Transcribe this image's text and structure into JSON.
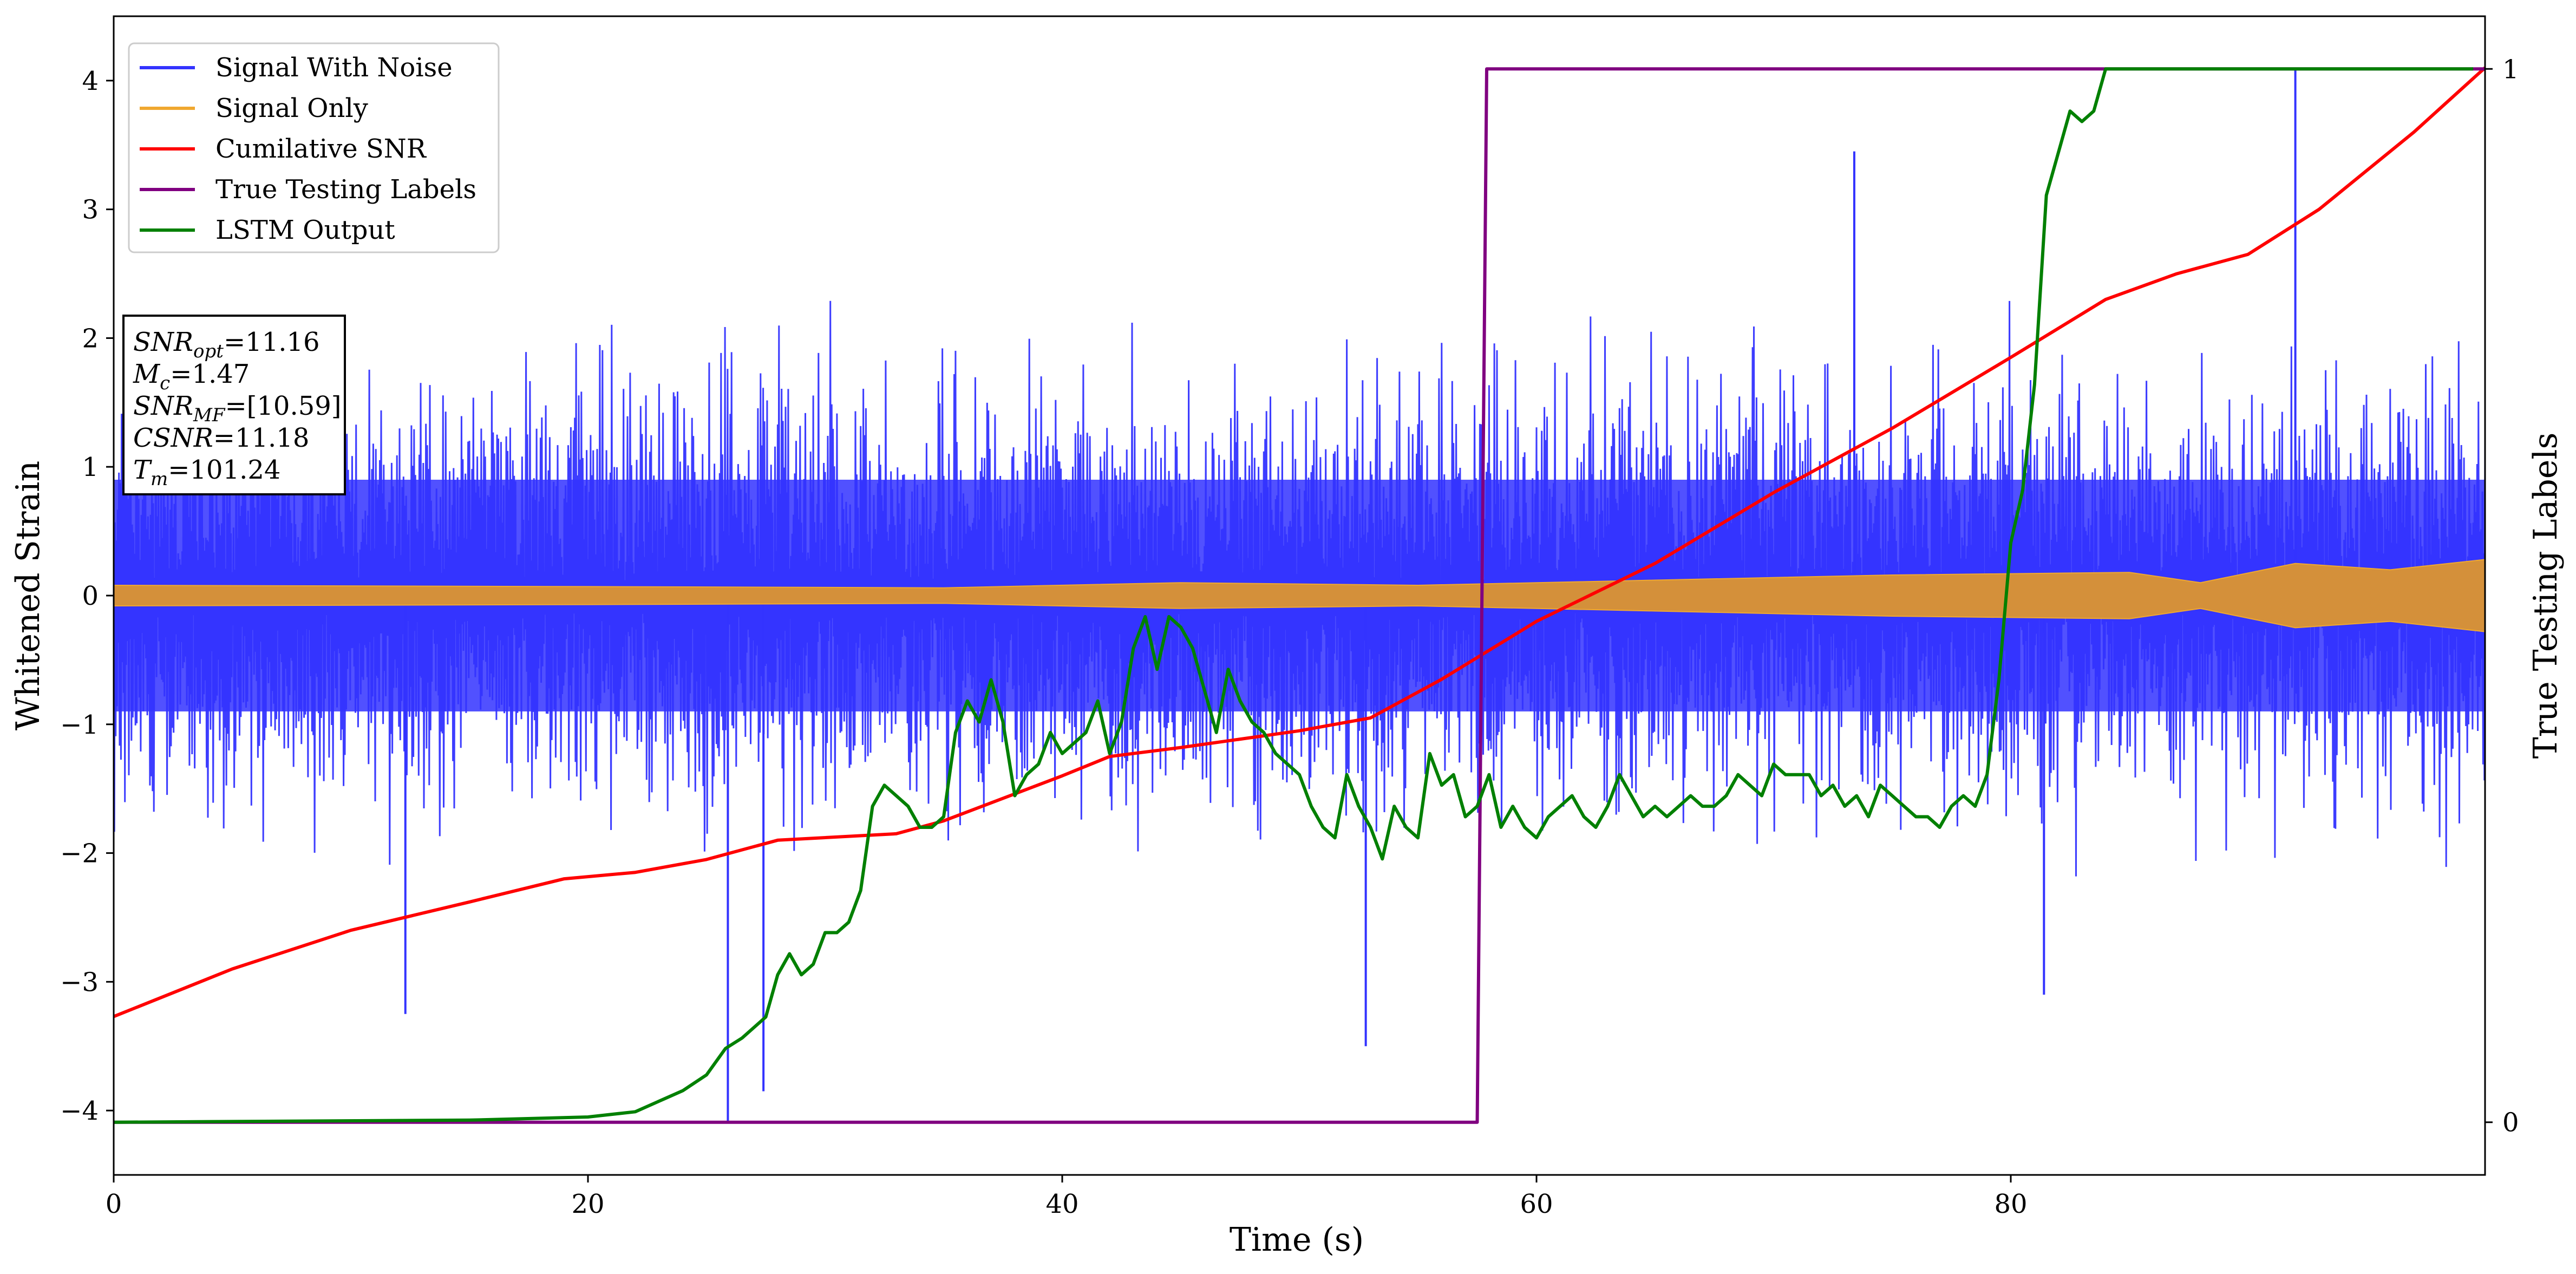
{
  "chart_data": {
    "type": "line",
    "title": "",
    "xlabel": "Time (s)",
    "ylabel": "Whitened Strain",
    "y2label": "True Testing Labels",
    "xlim": [
      0,
      100
    ],
    "ylim": [
      -4.5,
      4.5
    ],
    "y2lim": [
      -0.05,
      1.05
    ],
    "x_ticks": [
      0,
      20,
      40,
      60,
      80
    ],
    "x_tick_labels": [
      "0",
      "20",
      "40",
      "60",
      "80"
    ],
    "y_ticks": [
      -4,
      -3,
      -2,
      -1,
      0,
      1,
      2,
      3,
      4
    ],
    "y_tick_labels": [
      "−4",
      "−3",
      "−2",
      "−1",
      "0",
      "1",
      "2",
      "3",
      "4"
    ],
    "y2_ticks": [
      0,
      1
    ],
    "y2_tick_labels": [
      "0",
      "1"
    ],
    "grid": false,
    "legend_position": "top-left",
    "annotation": {
      "lines": [
        {
          "base": "SNR",
          "sub": "opt",
          "value": "=11.16"
        },
        {
          "base": "M",
          "sub": "c",
          "value": "=1.47"
        },
        {
          "base": "SNR",
          "sub": "MF",
          "value": "=[10.59]"
        },
        {
          "base": "CSNR",
          "sub": "",
          "value": "=11.18"
        },
        {
          "base": "T",
          "sub": "m",
          "value": "=101.24"
        }
      ]
    },
    "series": [
      {
        "name": "Signal With Noise",
        "color": "#3333ff",
        "axis": "left",
        "description_noise": {
          "positive_upper_level": [
            0.9,
            2.3
          ],
          "negative_lower_level": [
            -0.9,
            -2.2
          ]
        },
        "spikes": [
          {
            "x": 25.9,
            "y": -4.1
          },
          {
            "x": 27.4,
            "y": -3.85
          },
          {
            "x": 52.8,
            "y": -3.5
          },
          {
            "x": 92.0,
            "y": 4.1
          },
          {
            "x": 73.4,
            "y": 3.45
          },
          {
            "x": 81.4,
            "y": -3.1
          },
          {
            "x": 12.3,
            "y": -3.25
          }
        ]
      },
      {
        "name": "Signal Only",
        "color": "#f0a830",
        "axis": "left",
        "envelope": [
          [
            0,
            0.08
          ],
          [
            20,
            0.07
          ],
          [
            35,
            0.06
          ],
          [
            45,
            0.1
          ],
          [
            55,
            0.08
          ],
          [
            65,
            0.12
          ],
          [
            75,
            0.16
          ],
          [
            85,
            0.18
          ],
          [
            88,
            0.1
          ],
          [
            92,
            0.25
          ],
          [
            96,
            0.2
          ],
          [
            100,
            0.28
          ]
        ]
      },
      {
        "name": "Cumilative SNR",
        "color": "#ff0000",
        "axis": "left",
        "x": [
          0,
          5,
          10,
          15,
          19,
          22,
          25,
          28,
          33,
          35,
          40,
          42,
          45,
          50,
          53,
          56,
          60,
          65,
          70,
          75,
          80,
          84,
          87,
          90,
          93,
          97,
          100
        ],
        "y": [
          -3.27,
          -2.9,
          -2.6,
          -2.38,
          -2.2,
          -2.15,
          -2.05,
          -1.9,
          -1.85,
          -1.75,
          -1.4,
          -1.25,
          -1.18,
          -1.05,
          -0.95,
          -0.65,
          -0.2,
          0.25,
          0.8,
          1.3,
          1.85,
          2.3,
          2.5,
          2.65,
          3.0,
          3.6,
          4.1
        ]
      },
      {
        "name": "True Testing Labels",
        "color": "#800080",
        "axis": "right",
        "x": [
          0,
          57.5,
          57.9,
          100
        ],
        "y": [
          0,
          0,
          1,
          1
        ]
      },
      {
        "name": "LSTM Output",
        "color": "#008000",
        "axis": "right",
        "x": [
          0,
          15,
          20,
          22,
          23,
          24,
          25,
          25.8,
          26.5,
          27.5,
          28,
          28.5,
          29,
          29.5,
          30,
          30.5,
          31,
          31.5,
          32,
          32.5,
          33,
          33.5,
          34,
          34.5,
          35,
          35.5,
          36,
          36.5,
          37,
          37.5,
          38,
          38.5,
          39,
          39.5,
          40,
          40.5,
          41,
          41.5,
          42,
          42.5,
          43,
          43.5,
          44,
          44.5,
          45,
          45.5,
          46,
          46.5,
          47,
          47.5,
          48,
          48.5,
          49,
          49.5,
          50,
          50.5,
          51,
          51.5,
          52,
          52.5,
          53,
          53.5,
          54,
          54.5,
          55,
          55.5,
          56,
          56.5,
          57,
          57.5,
          58,
          58.5,
          59,
          59.5,
          60,
          60.5,
          61,
          61.5,
          62,
          62.5,
          63,
          63.5,
          64,
          64.5,
          65,
          65.5,
          66,
          66.5,
          67,
          67.5,
          68,
          68.5,
          69,
          69.5,
          70,
          70.5,
          71,
          71.5,
          72,
          72.5,
          73,
          73.5,
          74,
          74.5,
          75,
          75.5,
          76,
          76.5,
          77,
          77.5,
          78,
          78.5,
          79,
          79.5,
          80,
          80.5,
          81,
          81.5,
          82,
          82.5,
          83,
          83.5,
          84,
          84.5,
          85,
          86,
          87,
          88,
          89,
          90,
          91,
          92,
          93,
          94,
          95,
          96,
          97,
          98,
          99.5
        ],
        "y": [
          0,
          0.002,
          0.005,
          0.01,
          0.02,
          0.03,
          0.045,
          0.07,
          0.08,
          0.1,
          0.14,
          0.16,
          0.14,
          0.15,
          0.18,
          0.18,
          0.19,
          0.22,
          0.3,
          0.32,
          0.31,
          0.3,
          0.28,
          0.28,
          0.29,
          0.37,
          0.4,
          0.38,
          0.42,
          0.38,
          0.31,
          0.33,
          0.34,
          0.37,
          0.35,
          0.36,
          0.37,
          0.4,
          0.35,
          0.38,
          0.45,
          0.48,
          0.43,
          0.48,
          0.47,
          0.45,
          0.41,
          0.37,
          0.43,
          0.4,
          0.38,
          0.37,
          0.35,
          0.34,
          0.33,
          0.3,
          0.28,
          0.27,
          0.33,
          0.3,
          0.28,
          0.25,
          0.3,
          0.28,
          0.27,
          0.35,
          0.32,
          0.33,
          0.29,
          0.3,
          0.33,
          0.28,
          0.3,
          0.28,
          0.27,
          0.29,
          0.3,
          0.31,
          0.29,
          0.28,
          0.3,
          0.33,
          0.31,
          0.29,
          0.3,
          0.29,
          0.3,
          0.31,
          0.3,
          0.3,
          0.31,
          0.33,
          0.32,
          0.31,
          0.34,
          0.33,
          0.33,
          0.33,
          0.31,
          0.32,
          0.3,
          0.31,
          0.29,
          0.32,
          0.31,
          0.3,
          0.29,
          0.29,
          0.28,
          0.3,
          0.31,
          0.3,
          0.33,
          0.42,
          0.55,
          0.6,
          0.7,
          0.88,
          0.92,
          0.96,
          0.95,
          0.96,
          1.0,
          1.0,
          1.0,
          1.0,
          1.0,
          1.0,
          1.0,
          1.0,
          1.0,
          1.0,
          1.0,
          1.0,
          1.0,
          1.0,
          1.0,
          1.0,
          1.0
        ]
      }
    ]
  }
}
